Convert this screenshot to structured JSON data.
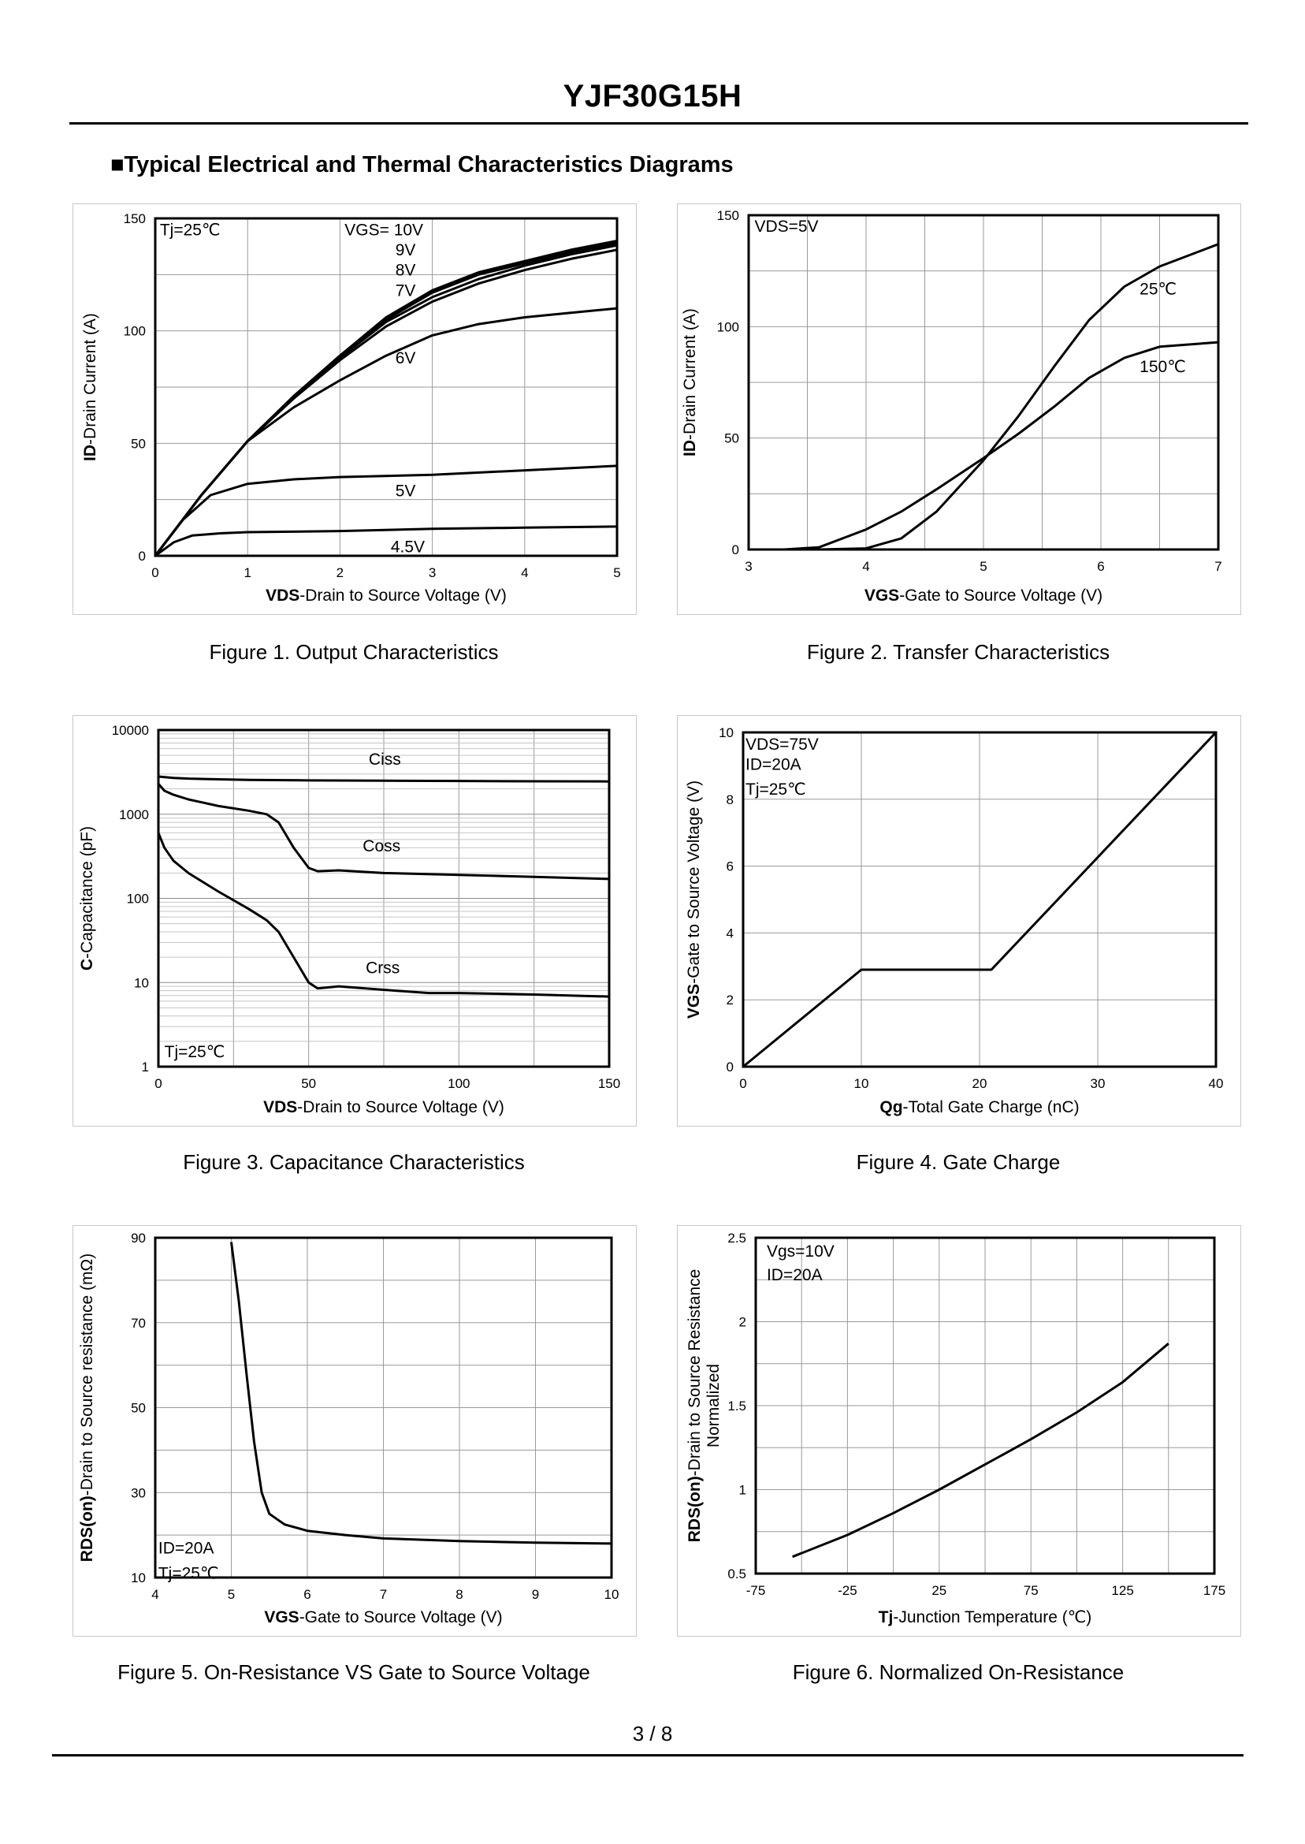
{
  "header": {
    "title": "YJF30G15H",
    "section": "■Typical Electrical and Thermal Characteristics Diagrams"
  },
  "footer": {
    "page": "3 / 8"
  },
  "chart_data": [
    {
      "id": "fig1",
      "type": "line",
      "caption": "Figure 1.  Output Characteristics",
      "xlabel_bold": "VDS",
      "xlabel_rest": "-Drain to Source Voltage (V)",
      "ylabel_bold": "ID",
      "ylabel_rest": "-Drain Current (A)",
      "xlim": [
        0,
        5
      ],
      "ylim": [
        0,
        150
      ],
      "xticks": [
        0,
        1,
        2,
        3,
        4,
        5
      ],
      "yticks": [
        0,
        50,
        100,
        150
      ],
      "xgrid": 5,
      "ygrid": 6,
      "annotations": [
        {
          "text": "Tj=25℃",
          "x": 0.05,
          "y": 145
        },
        {
          "text": "VGS= 10V",
          "x": 2.05,
          "y": 145
        },
        {
          "text": "9V",
          "x": 2.6,
          "y": 136
        },
        {
          "text": "8V",
          "x": 2.6,
          "y": 127
        },
        {
          "text": "7V",
          "x": 2.6,
          "y": 118
        },
        {
          "text": "6V",
          "x": 2.6,
          "y": 88
        },
        {
          "text": "5V",
          "x": 2.6,
          "y": 29
        },
        {
          "text": "4.5V",
          "x": 2.55,
          "y": 4
        }
      ],
      "series": [
        {
          "name": "10V",
          "x": [
            0,
            0.5,
            1,
            1.5,
            2,
            2.5,
            3,
            3.5,
            4,
            4.5,
            5
          ],
          "y": [
            0,
            27,
            51,
            71,
            89,
            106,
            118,
            126,
            131,
            136,
            140
          ]
        },
        {
          "name": "9V",
          "x": [
            0,
            0.5,
            1,
            1.5,
            2,
            2.5,
            3,
            3.5,
            4,
            4.5,
            5
          ],
          "y": [
            0,
            27,
            51,
            71,
            89,
            105,
            117,
            125,
            130,
            135,
            139
          ]
        },
        {
          "name": "8V",
          "x": [
            0,
            0.5,
            1,
            1.5,
            2,
            2.5,
            3,
            3.5,
            4,
            4.5,
            5
          ],
          "y": [
            0,
            27,
            51,
            70,
            88,
            104,
            115,
            123,
            129,
            134,
            138
          ]
        },
        {
          "name": "7V",
          "x": [
            0,
            0.5,
            1,
            1.5,
            2,
            2.5,
            3,
            3.5,
            4,
            4.5,
            5
          ],
          "y": [
            0,
            27,
            51,
            70,
            87,
            102,
            113,
            121,
            127,
            132,
            136
          ]
        },
        {
          "name": "6V",
          "x": [
            0,
            0.5,
            1,
            1.5,
            2,
            2.5,
            3,
            3.5,
            4,
            4.5,
            5
          ],
          "y": [
            0,
            27,
            51,
            66,
            78,
            89,
            98,
            103,
            106,
            108,
            110
          ]
        },
        {
          "name": "5V",
          "x": [
            0,
            0.3,
            0.6,
            1,
            1.5,
            2,
            3,
            4,
            5
          ],
          "y": [
            0,
            16,
            27,
            32,
            34,
            35,
            36,
            38,
            40
          ]
        },
        {
          "name": "4.5V",
          "x": [
            0,
            0.2,
            0.4,
            0.7,
            1,
            2,
            3,
            4,
            5
          ],
          "y": [
            0,
            6,
            9,
            10,
            10.5,
            11,
            12,
            12.5,
            13
          ]
        }
      ]
    },
    {
      "id": "fig2",
      "type": "line",
      "caption": "Figure 2.  Transfer Characteristics",
      "xlabel_bold": "VGS",
      "xlabel_rest": "-Gate to Source Voltage (V)",
      "ylabel_bold": "ID",
      "ylabel_rest": "-Drain Current (A)",
      "xlim": [
        3,
        7
      ],
      "ylim": [
        0,
        150
      ],
      "xticks": [
        3,
        4,
        5,
        6,
        7
      ],
      "yticks": [
        0,
        50,
        100,
        150
      ],
      "xgrid": 8,
      "ygrid": 6,
      "annotations": [
        {
          "text": "VDS=5V",
          "x": 3.05,
          "y": 145
        },
        {
          "text": "25℃",
          "x": 6.33,
          "y": 117
        },
        {
          "text": "150℃",
          "x": 6.33,
          "y": 82
        }
      ],
      "series": [
        {
          "name": "25℃",
          "x": [
            3.3,
            3.6,
            4,
            4.3,
            4.6,
            5,
            5.3,
            5.6,
            5.9,
            6.2,
            6.5,
            7
          ],
          "y": [
            0,
            0,
            0.5,
            5,
            17,
            40,
            60,
            82,
            103,
            118,
            127,
            137
          ]
        },
        {
          "name": "150℃",
          "x": [
            3.3,
            3.6,
            4,
            4.3,
            4.6,
            5,
            5.3,
            5.6,
            5.9,
            6.2,
            6.5,
            7
          ],
          "y": [
            0,
            1,
            9,
            17,
            27,
            41,
            52,
            64,
            77,
            86,
            91,
            93
          ]
        }
      ]
    },
    {
      "id": "fig3",
      "type": "line",
      "scale": "log",
      "caption": "Figure 3.  Capacitance Characteristics",
      "xlabel_bold": "VDS",
      "xlabel_rest": "-Drain to Source Voltage (V)",
      "ylabel_bold": "C",
      "ylabel_rest": "-Capacitance (pF)",
      "xlim": [
        0,
        150
      ],
      "ylim": [
        1,
        10000
      ],
      "xticks": [
        0,
        50,
        100,
        150
      ],
      "yticks": [
        1,
        10,
        100,
        1000,
        10000
      ],
      "xgrid": 6,
      "annotations": [
        {
          "text": "Ciss",
          "x": 70,
          "y": 4500
        },
        {
          "text": "Coss",
          "x": 68,
          "y": 420
        },
        {
          "text": "Crss",
          "x": 69,
          "y": 15
        },
        {
          "text": "Tj=25℃",
          "x": 2,
          "y": 1.5
        }
      ],
      "series": [
        {
          "name": "Ciss",
          "x": [
            0,
            5,
            10,
            20,
            30,
            50,
            75,
            100,
            125,
            150
          ],
          "y": [
            2800,
            2700,
            2650,
            2600,
            2560,
            2520,
            2500,
            2480,
            2460,
            2450
          ]
        },
        {
          "name": "Coss",
          "x": [
            0,
            2,
            5,
            10,
            20,
            30,
            36,
            40,
            45,
            50,
            53,
            60,
            75,
            100,
            125,
            150
          ],
          "y": [
            2300,
            1900,
            1700,
            1500,
            1250,
            1100,
            1000,
            800,
            400,
            230,
            210,
            215,
            200,
            190,
            180,
            170
          ]
        },
        {
          "name": "Crss",
          "x": [
            0,
            2,
            5,
            10,
            20,
            30,
            36,
            40,
            45,
            50,
            53,
            60,
            75,
            90,
            100,
            125,
            150
          ],
          "y": [
            600,
            400,
            280,
            200,
            120,
            75,
            55,
            40,
            20,
            10,
            8.5,
            9,
            8.2,
            7.5,
            7.5,
            7.2,
            6.8
          ]
        }
      ]
    },
    {
      "id": "fig4",
      "type": "line",
      "caption": "Figure 4.  Gate Charge",
      "xlabel_bold": "Qg",
      "xlabel_rest": "-Total Gate Charge (nC)",
      "ylabel_bold": "VGS",
      "ylabel_rest": "-Gate to Source Voltage (V)",
      "xlim": [
        0,
        40
      ],
      "ylim": [
        0,
        10
      ],
      "xticks": [
        0,
        10,
        20,
        30,
        40
      ],
      "yticks": [
        0,
        2,
        4,
        6,
        8,
        10
      ],
      "xgrid": 4,
      "ygrid": 5,
      "annotations": [
        {
          "text": "VDS=75V",
          "x": 0.2,
          "y": 9.65
        },
        {
          "text": "ID=20A",
          "x": 0.2,
          "y": 9.05
        },
        {
          "text": "Tj=25℃",
          "x": 0.2,
          "y": 8.3
        }
      ],
      "series": [
        {
          "name": "VGS",
          "x": [
            0,
            10,
            21,
            40
          ],
          "y": [
            0,
            2.9,
            2.9,
            10
          ]
        }
      ]
    },
    {
      "id": "fig5",
      "type": "line",
      "caption": "Figure 5.  On-Resistance VS Gate to Source Voltage",
      "xlabel_bold": "VGS",
      "xlabel_rest": "-Gate to Source Voltage (V)",
      "ylabel_bold": "RDS(on)",
      "ylabel_rest": "-Drain to Source resistance (mΩ)",
      "xlim": [
        4,
        10
      ],
      "ylim": [
        10,
        90
      ],
      "xticks": [
        4,
        5,
        6,
        7,
        8,
        9,
        10
      ],
      "yticks": [
        10,
        30,
        50,
        70,
        90
      ],
      "xgrid": 6,
      "ygrid": 8,
      "annotations": [
        {
          "text": "ID=20A",
          "x": 4.04,
          "y": 17
        },
        {
          "text": "Tj=25℃",
          "x": 4.04,
          "y": 11
        }
      ],
      "series": [
        {
          "name": "RDS(on)",
          "x": [
            5,
            5.1,
            5.2,
            5.3,
            5.4,
            5.5,
            5.7,
            6,
            6.5,
            7,
            8,
            9,
            10
          ],
          "y": [
            89,
            75,
            58,
            42,
            30,
            25,
            22.5,
            21,
            20,
            19.2,
            18.6,
            18.2,
            18
          ]
        }
      ]
    },
    {
      "id": "fig6",
      "type": "line",
      "caption": "Figure 6.  Normalized On-Resistance",
      "xlabel_bold": "Tj",
      "xlabel_rest": "-Junction  Temperature (℃)",
      "ylabel_bold": "RDS(on)",
      "ylabel_rest": "-Drain to Source Resistance",
      "ylabel_line2": "Normalized",
      "xlim": [
        -75,
        175
      ],
      "ylim": [
        0.5,
        2.5
      ],
      "xticks": [
        -75,
        -25,
        25,
        75,
        125,
        175
      ],
      "yticks": [
        0.5,
        1,
        1.5,
        2,
        2.5
      ],
      "xgrid": 10,
      "ygrid": 8,
      "annotations": [
        {
          "text": "Vgs=10V",
          "x": -69,
          "y": 2.42
        },
        {
          "text": "ID=20A",
          "x": -69,
          "y": 2.28
        }
      ],
      "series": [
        {
          "name": "Normalized",
          "x": [
            -55,
            -25,
            0,
            25,
            50,
            75,
            100,
            125,
            150
          ],
          "y": [
            0.6,
            0.73,
            0.86,
            1.0,
            1.15,
            1.3,
            1.46,
            1.64,
            1.87
          ]
        }
      ]
    }
  ]
}
